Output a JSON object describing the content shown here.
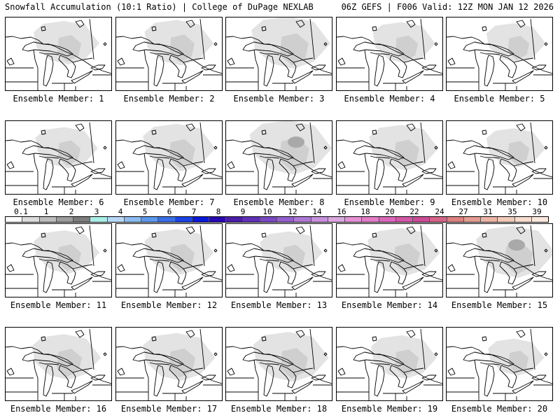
{
  "header": {
    "left_title": "Snowfall Accumulation (10:1 Ratio) | College of DuPage NEXLAB",
    "right_title": "06Z GEFS | F006 Valid: 12Z MON JAN 12 2026"
  },
  "panels": [
    {
      "label": "Ensemble Member: 1"
    },
    {
      "label": "Ensemble Member: 2"
    },
    {
      "label": "Ensemble Member: 3"
    },
    {
      "label": "Ensemble Member: 4"
    },
    {
      "label": "Ensemble Member: 5"
    },
    {
      "label": "Ensemble Member: 6"
    },
    {
      "label": "Ensemble Member: 7"
    },
    {
      "label": "Ensemble Member: 8"
    },
    {
      "label": "Ensemble Member: 9"
    },
    {
      "label": "Ensemble Member: 10"
    },
    {
      "label": "Ensemble Member: 11"
    },
    {
      "label": "Ensemble Member: 12"
    },
    {
      "label": "Ensemble Member: 13"
    },
    {
      "label": "Ensemble Member: 14"
    },
    {
      "label": "Ensemble Member: 15"
    },
    {
      "label": "Ensemble Member: 16"
    },
    {
      "label": "Ensemble Member: 17"
    },
    {
      "label": "Ensemble Member: 18"
    },
    {
      "label": "Ensemble Member: 19"
    },
    {
      "label": "Ensemble Member: 20"
    }
  ],
  "legend": {
    "ticks": [
      "0.1",
      "1",
      "2",
      "3",
      "4",
      "5",
      "6",
      "7",
      "8",
      "9",
      "10",
      "12",
      "14",
      "16",
      "18",
      "20",
      "22",
      "24",
      "27",
      "31",
      "35",
      "39"
    ],
    "colors": [
      "#ffffff",
      "#dcdcdc",
      "#bdbdbd",
      "#9c9c9c",
      "#7d7d7d",
      "#a8eee6",
      "#b8d8f8",
      "#8cbcf0",
      "#5e98ec",
      "#3a6ee8",
      "#1c44e4",
      "#0a1ad8",
      "#2a08b0",
      "#4a1ea8",
      "#6030b8",
      "#7a48c4",
      "#9460cc",
      "#ae78d4",
      "#c890dc",
      "#dca6e0",
      "#e690d4",
      "#e27cc8",
      "#dc68bc",
      "#d458a8",
      "#cc4c98",
      "#d46488",
      "#dc8080",
      "#e49c92",
      "#ecb4a6",
      "#f2caba",
      "#f6dcce",
      "#fae8de"
    ]
  }
}
